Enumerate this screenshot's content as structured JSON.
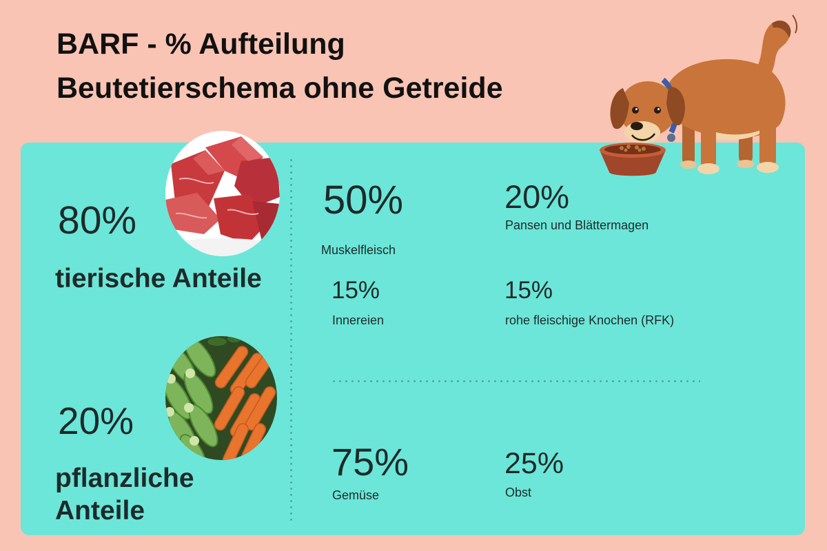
{
  "title": {
    "line1": "BARF - % Aufteilung",
    "line2": "Beutetierschema ohne Getreide"
  },
  "animal": {
    "percent": "80%",
    "label": "tierische Anteile",
    "image": "meat-image"
  },
  "plant": {
    "percent": "20%",
    "label_line1": "pflanzliche",
    "label_line2": "Anteile",
    "image": "vegetables-image"
  },
  "animal_breakdown": [
    {
      "percent": "50%",
      "label": "Muskelfleisch"
    },
    {
      "percent": "20%",
      "label": "Pansen und Blättermagen"
    },
    {
      "percent": "15%",
      "label": "Innereien"
    },
    {
      "percent": "15%",
      "label": "rohe fleischige Knochen (RFK)"
    }
  ],
  "plant_breakdown": [
    {
      "percent": "75%",
      "label": "Gemüse"
    },
    {
      "percent": "25%",
      "label": "Obst"
    }
  ],
  "illustration": "dog-eating-from-bowl-icon",
  "colors": {
    "background": "#F9C4B4",
    "panel": "#6CE6D9",
    "text": "#1E2A2A",
    "divider": "#3FA79C"
  }
}
